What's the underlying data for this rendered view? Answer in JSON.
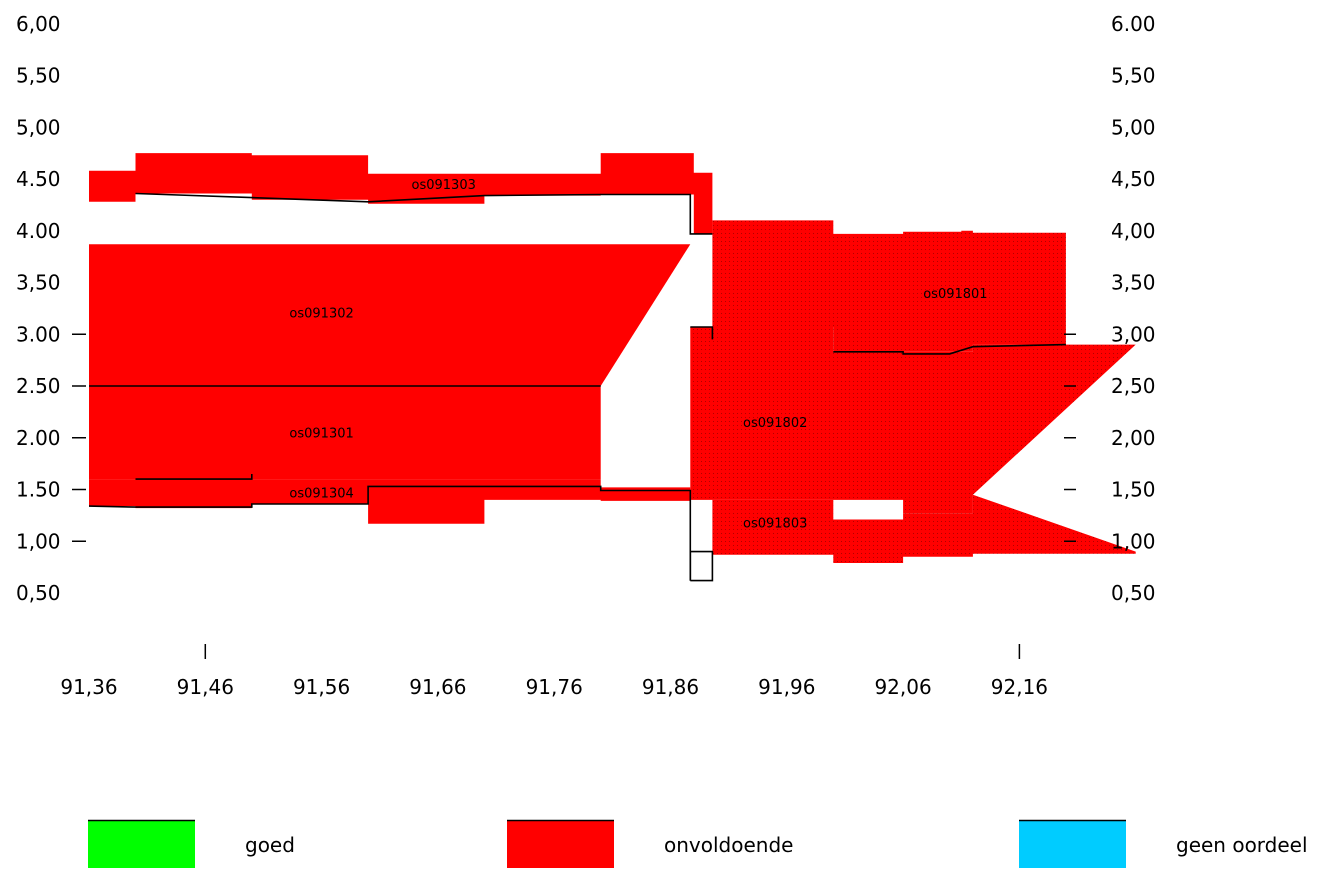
{
  "chart_data": {
    "type": "area",
    "title": "",
    "xlabel": "",
    "ylabel": "",
    "xlim": [
      91.36,
      92.26
    ],
    "ylim": [
      0.5,
      6.0
    ],
    "x_ticks": [
      "91,36",
      "91,46",
      "91,56",
      "91,66",
      "91,76",
      "91,86",
      "91,96",
      "92,06",
      "92,16"
    ],
    "x_tick_values": [
      91.36,
      91.46,
      91.56,
      91.66,
      91.76,
      91.86,
      91.96,
      92.06,
      92.16
    ],
    "x_tick_marks": [
      91.46,
      92.16
    ],
    "y_ticks_left": [
      "0,50",
      "1,00",
      "1.50",
      "2.00",
      "2.50",
      "3.00",
      "3,50",
      "4.00",
      "4.50",
      "5,00",
      "5,50",
      "6,00"
    ],
    "y_ticks_right": [
      "0,50",
      "1,00",
      "1,50",
      "2,00",
      "2,50",
      "3,00",
      "3,50",
      "4,00",
      "4,50",
      "5,00",
      "5,50",
      "6.00"
    ],
    "y_tick_values": [
      0.5,
      1.0,
      1.5,
      2.0,
      2.5,
      3.0,
      3.5,
      4.0,
      4.5,
      5.0,
      5.5,
      6.0
    ],
    "left_tick_marks": [
      1.0,
      1.5,
      2.0,
      2.5,
      3.0
    ],
    "right_tick_marks": [
      1.0,
      1.5,
      2.0,
      2.5,
      3.0
    ],
    "series": [
      {
        "name": "os091303",
        "status": "onvoldoende",
        "top": [
          [
            91.36,
            4.58
          ],
          [
            91.4,
            4.75
          ],
          [
            91.5,
            4.73
          ],
          [
            91.6,
            4.55
          ],
          [
            91.8,
            4.75
          ],
          [
            91.88,
            4.56
          ],
          [
            91.896,
            4.56
          ]
        ],
        "bottom": [
          [
            91.36,
            4.28
          ],
          [
            91.4,
            4.36
          ],
          [
            91.5,
            4.3
          ],
          [
            91.6,
            4.26
          ],
          [
            91.7,
            4.34
          ],
          [
            91.8,
            4.35
          ],
          [
            91.88,
            3.97
          ],
          [
            91.896,
            3.97
          ]
        ],
        "boundary": [
          [
            91.4,
            4.36
          ],
          [
            91.5,
            4.32
          ],
          [
            91.6,
            4.28
          ],
          [
            91.7,
            4.34
          ],
          [
            91.8,
            4.35
          ],
          [
            91.877,
            4.35
          ],
          [
            91.877,
            3.97
          ],
          [
            91.896,
            3.97
          ]
        ],
        "label_x": 91.665,
        "label_y": 4.45
      },
      {
        "name": "os091302",
        "status": "onvoldoende",
        "top": [
          [
            91.36,
            3.87
          ],
          [
            91.877,
            3.87
          ]
        ],
        "bottom": [
          [
            91.36,
            2.5
          ],
          [
            91.8,
            2.5
          ]
        ],
        "boundary": [
          [
            91.36,
            2.5
          ],
          [
            91.8,
            2.5
          ]
        ],
        "label_x": 91.56,
        "label_y": 3.21
      },
      {
        "name": "os091301",
        "status": "onvoldoende",
        "top": [
          [
            91.36,
            2.5
          ],
          [
            91.8,
            2.5
          ]
        ],
        "bottom": [
          [
            91.36,
            1.6
          ],
          [
            91.8,
            1.6
          ]
        ],
        "boundary": [
          [
            91.4,
            1.6
          ],
          [
            91.5,
            1.6
          ],
          [
            91.5,
            1.65
          ]
        ],
        "label_x": 91.56,
        "label_y": 2.05
      },
      {
        "name": "os091304",
        "status": "onvoldoende",
        "top": [
          [
            91.36,
            1.6
          ],
          [
            91.8,
            1.52
          ],
          [
            91.877,
            1.49
          ]
        ],
        "bottom": [
          [
            91.36,
            1.34
          ],
          [
            91.4,
            1.32
          ],
          [
            91.5,
            1.36
          ],
          [
            91.6,
            1.17
          ],
          [
            91.7,
            1.4
          ],
          [
            91.8,
            1.39
          ],
          [
            91.877,
            1.39
          ]
        ],
        "boundary": [
          [
            91.36,
            1.34
          ],
          [
            91.4,
            1.33
          ],
          [
            91.5,
            1.33
          ],
          [
            91.5,
            1.36
          ],
          [
            91.6,
            1.36
          ],
          [
            91.6,
            1.53
          ],
          [
            91.8,
            1.53
          ],
          [
            91.8,
            1.49
          ],
          [
            91.877,
            1.49
          ],
          [
            91.877,
            0.62
          ]
        ],
        "label_x": 91.56,
        "label_y": 1.47
      },
      {
        "name": "os091802",
        "status": "onvoldoende",
        "top": [
          [
            91.877,
            3.07
          ],
          [
            91.896,
            3.07
          ],
          [
            92.0,
            2.83
          ],
          [
            92.12,
            2.9
          ],
          [
            92.26,
            2.9
          ]
        ],
        "bottom": [
          [
            91.877,
            1.4
          ],
          [
            91.96,
            1.4
          ],
          [
            92.06,
            1.27
          ],
          [
            92.12,
            1.45
          ]
        ],
        "boundary": [
          [
            91.877,
            3.07
          ],
          [
            91.896,
            3.07
          ],
          [
            91.896,
            2.95
          ]
        ],
        "label_x": 91.95,
        "label_y": 2.15
      },
      {
        "name": "os091803",
        "status": "onvoldoende",
        "top": [
          [
            91.896,
            1.4
          ],
          [
            92.0,
            1.4
          ],
          [
            92.0,
            1.21
          ],
          [
            92.05,
            1.21
          ],
          [
            92.06,
            1.27
          ],
          [
            92.1,
            1.27
          ],
          [
            92.12,
            1.45
          ]
        ],
        "bottom": [
          [
            91.896,
            0.87
          ],
          [
            92.0,
            0.87
          ],
          [
            92.0,
            0.79
          ],
          [
            92.06,
            0.79
          ],
          [
            92.06,
            0.85
          ],
          [
            92.1,
            0.85
          ],
          [
            92.12,
            0.88
          ],
          [
            92.26,
            0.9
          ]
        ],
        "boundary": [
          [
            91.877,
            0.62
          ],
          [
            91.877,
            0.9
          ],
          [
            91.896,
            0.9
          ],
          [
            91.896,
            0.62
          ],
          [
            91.877,
            0.62
          ]
        ],
        "label_x": 91.95,
        "label_y": 1.18
      },
      {
        "name": "os091801",
        "status": "onvoldoende",
        "top": [
          [
            91.896,
            4.1
          ],
          [
            92.0,
            4.1
          ],
          [
            92.0,
            3.97
          ],
          [
            92.06,
            3.97
          ],
          [
            92.06,
            3.99
          ],
          [
            92.11,
            4.0
          ],
          [
            92.12,
            3.98
          ],
          [
            92.2,
            4.12
          ]
        ],
        "bottom": [
          [
            91.896,
            3.07
          ],
          [
            92.0,
            2.83
          ],
          [
            92.12,
            2.9
          ],
          [
            92.2,
            2.9
          ]
        ],
        "boundary": [
          [
            92.0,
            2.83
          ],
          [
            92.06,
            2.83
          ],
          [
            92.06,
            2.81
          ],
          [
            92.1,
            2.81
          ],
          [
            92.12,
            2.88
          ],
          [
            92.2,
            2.9
          ]
        ],
        "label_x": 92.105,
        "label_y": 3.4
      }
    ],
    "legend_position": "bottom",
    "legend": [
      {
        "label": "goed",
        "color": "#00ff00"
      },
      {
        "label": "onvoldoende",
        "color": "#ff0000"
      },
      {
        "label": "geen oordeel",
        "color": "#00ccff"
      }
    ],
    "colors": {
      "onvoldoende": "#ff0000",
      "stipple_dot": "#b00000",
      "line": "#000000"
    }
  }
}
